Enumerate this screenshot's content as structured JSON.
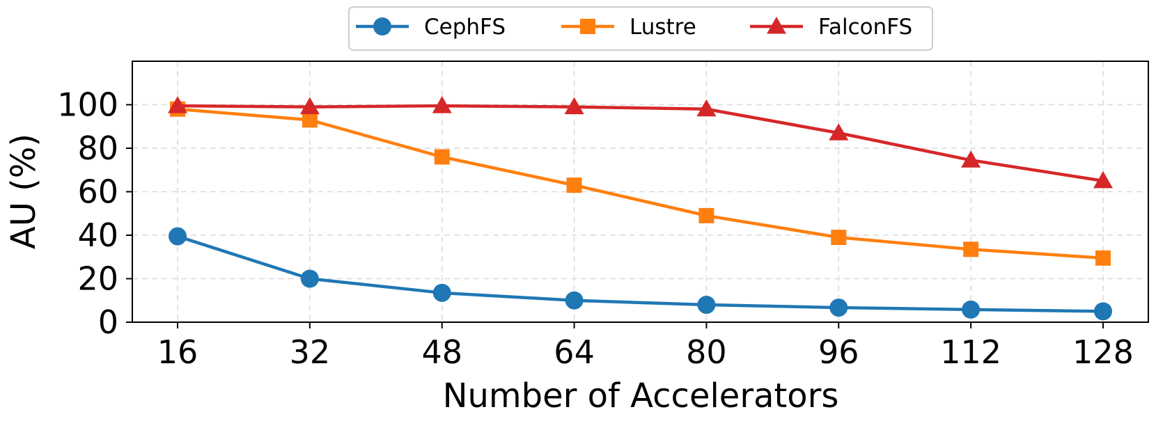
{
  "chart_data": {
    "type": "line",
    "title": "",
    "xlabel": "Number of Accelerators",
    "ylabel": "AU (%)",
    "x": [
      16,
      32,
      48,
      64,
      80,
      96,
      112,
      128
    ],
    "x_tick_labels": [
      "16",
      "32",
      "48",
      "64",
      "80",
      "96",
      "112",
      "128"
    ],
    "y_ticks": [
      0,
      20,
      40,
      60,
      80,
      100
    ],
    "y_tick_labels": [
      "0",
      "20",
      "40",
      "60",
      "80",
      "100"
    ],
    "ylim": [
      0,
      120
    ],
    "grid": true,
    "legend_position": "top-center",
    "series": [
      {
        "name": "CephFS",
        "color": "#1f77b4",
        "marker": "circle",
        "values": [
          39.5,
          20,
          13.5,
          10,
          8,
          6.7,
          5.8,
          5
        ]
      },
      {
        "name": "Lustre",
        "color": "#ff7f0e",
        "marker": "square",
        "values": [
          98,
          93,
          76,
          63,
          49,
          39,
          33.5,
          29.5
        ]
      },
      {
        "name": "FalconFS",
        "color": "#d62728",
        "marker": "triangle",
        "values": [
          99.5,
          99,
          99.5,
          99,
          98,
          87,
          74.5,
          65
        ]
      }
    ]
  }
}
